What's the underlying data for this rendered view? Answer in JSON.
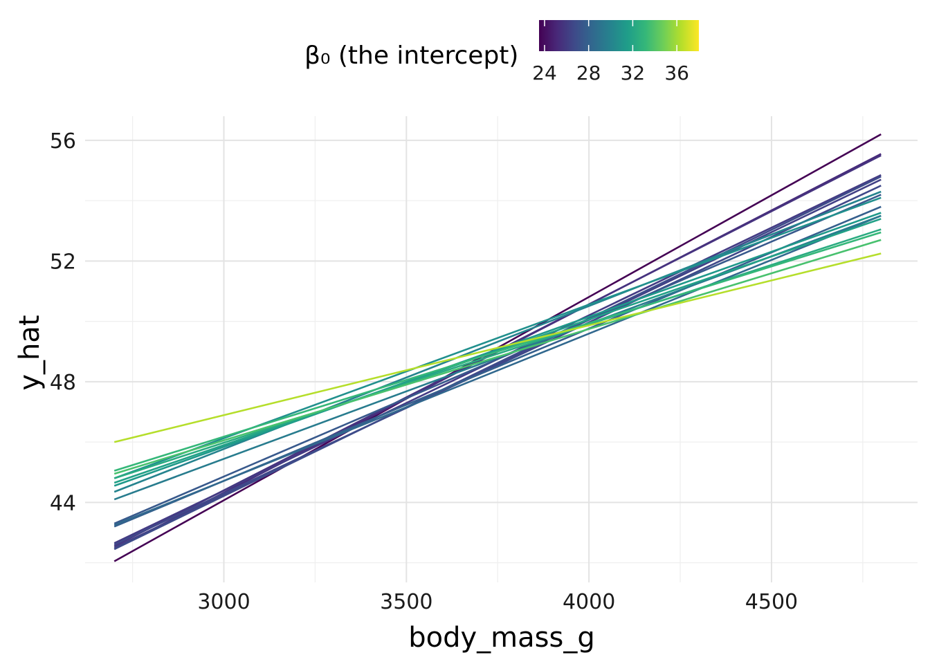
{
  "chart_data": {
    "type": "line",
    "title": "",
    "xlabel": "body_mass_g",
    "ylabel": "y_hat",
    "xlim": [
      2620,
      4900
    ],
    "ylim": [
      41.35,
      56.8
    ],
    "x_major_ticks": [
      3000,
      3500,
      4000,
      4500
    ],
    "x_minor_ticks": [
      2750,
      3250,
      3750,
      4250,
      4750
    ],
    "y_major_ticks": [
      44,
      48,
      52,
      56
    ],
    "y_minor_ticks": [
      42,
      46,
      50,
      54
    ],
    "x_tick_labels": [
      "3000",
      "3500",
      "4000",
      "4500"
    ],
    "y_tick_labels": [
      "44",
      "48",
      "52",
      "56"
    ],
    "grid": true,
    "legend": {
      "title": "β₀ (the intercept)",
      "position": "top",
      "type": "colorbar",
      "palette": "viridis",
      "range": [
        23.5,
        38.0
      ],
      "ticks": [
        24,
        28,
        32,
        36
      ],
      "tick_labels": [
        "24",
        "28",
        "32",
        "36"
      ],
      "colors": [
        "#440154",
        "#482878",
        "#3e4a89",
        "#31688e",
        "#26828e",
        "#1f9e89",
        "#35b779",
        "#6ece58",
        "#b5de2b",
        "#fde725"
      ]
    },
    "x": [
      2700,
      4800
    ],
    "series": [
      {
        "intercept": 23.6,
        "values": [
          42.05,
          56.2
        ],
        "color": "#440154"
      },
      {
        "intercept": 25.3,
        "values": [
          42.45,
          55.55
        ],
        "color": "#472a7a"
      },
      {
        "intercept": 25.5,
        "values": [
          42.55,
          55.5
        ],
        "color": "#46337f"
      },
      {
        "intercept": 26.1,
        "values": [
          42.65,
          54.85
        ],
        "color": "#443b84"
      },
      {
        "intercept": 26.4,
        "values": [
          42.5,
          54.7
        ],
        "color": "#424186"
      },
      {
        "intercept": 26.7,
        "values": [
          42.6,
          54.5
        ],
        "color": "#3f4889"
      },
      {
        "intercept": 27.0,
        "values": [
          42.45,
          54.8
        ],
        "color": "#3e4c8a"
      },
      {
        "intercept": 28.0,
        "values": [
          43.3,
          54.2
        ],
        "color": "#38598c"
      },
      {
        "intercept": 28.6,
        "values": [
          43.2,
          53.8
        ],
        "color": "#355f8d"
      },
      {
        "intercept": 29.5,
        "values": [
          43.25,
          53.5
        ],
        "color": "#31688e"
      },
      {
        "intercept": 31.0,
        "values": [
          44.1,
          53.5
        ],
        "color": "#287c8e"
      },
      {
        "intercept": 31.5,
        "values": [
          44.35,
          54.3
        ],
        "color": "#25838e"
      },
      {
        "intercept": 32.3,
        "values": [
          44.8,
          54.1
        ],
        "color": "#21908d"
      },
      {
        "intercept": 33.0,
        "values": [
          44.55,
          53.6
        ],
        "color": "#1f998a"
      },
      {
        "intercept": 33.6,
        "values": [
          44.65,
          53.4
        ],
        "color": "#22a187"
      },
      {
        "intercept": 34.2,
        "values": [
          44.8,
          53.05
        ],
        "color": "#2aab81"
      },
      {
        "intercept": 34.8,
        "values": [
          45.05,
          52.95
        ],
        "color": "#35b779"
      },
      {
        "intercept": 35.3,
        "values": [
          44.95,
          52.7
        ],
        "color": "#48c16e"
      },
      {
        "intercept": 38.0,
        "values": [
          46.0,
          52.25
        ],
        "color": "#b5de2b"
      }
    ]
  }
}
